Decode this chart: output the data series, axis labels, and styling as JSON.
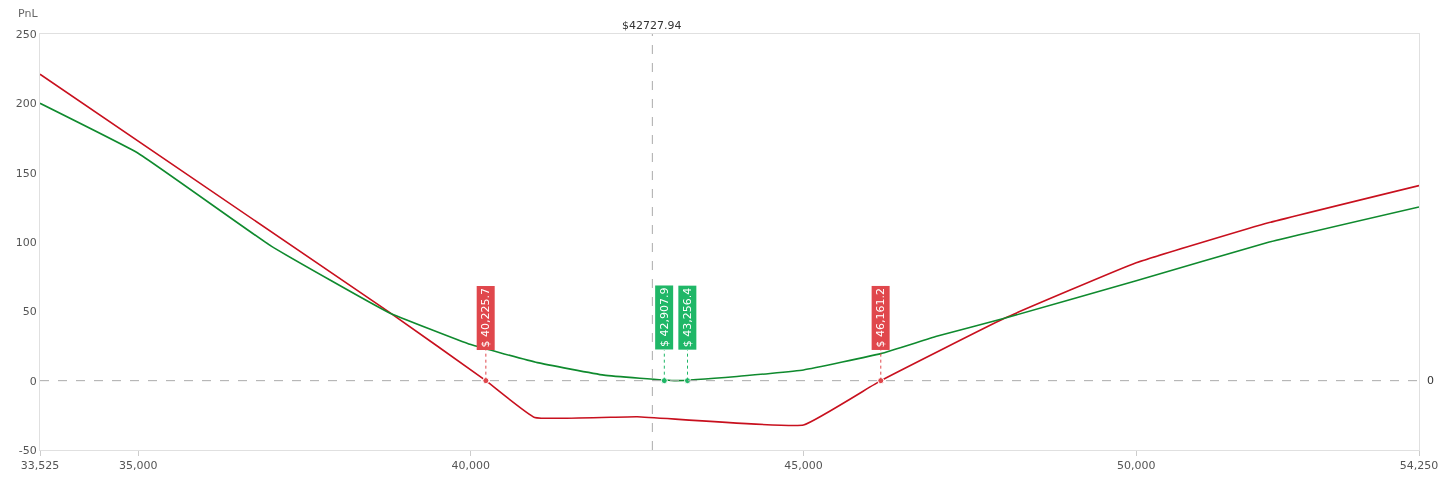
{
  "chart_data": {
    "type": "line",
    "ylabel": "PnL",
    "xlim": [
      33525,
      54250
    ],
    "ylim": [
      -50,
      250
    ],
    "xticks": [
      {
        "value": 33525,
        "label": "33,525"
      },
      {
        "value": 35000,
        "label": "35,000"
      },
      {
        "value": 40000,
        "label": "40,000"
      },
      {
        "value": 45000,
        "label": "45,000"
      },
      {
        "value": 50000,
        "label": "50,000"
      },
      {
        "value": 54250,
        "label": "54,250"
      }
    ],
    "yticks": [
      -50,
      0,
      50,
      100,
      150,
      200,
      250
    ],
    "marker": "none",
    "line_style": "solid",
    "series": [
      {
        "color": "#c8101e",
        "x": [
          33525,
          38756,
          40225.7,
          40960,
          42500,
          45000,
          46161.2,
          48020,
          50000,
          52000,
          54250
        ],
        "values": [
          221,
          50,
          0,
          -26.5,
          -26,
          -32,
          0,
          45,
          85,
          114,
          140.7
        ]
      },
      {
        "color": "#0f8a2e",
        "x": [
          33525,
          35000,
          37000,
          38756,
          40000,
          41000,
          42000,
          43080,
          44000,
          45000,
          46161.2,
          47000,
          48020,
          50000,
          52000,
          54250
        ],
        "values": [
          200,
          164,
          97,
          49.4,
          26,
          13,
          4,
          0,
          3,
          7.7,
          19.5,
          32,
          45,
          72,
          100,
          125.3
        ]
      },
      {
        "type": "scatter",
        "marker": "circle",
        "color": "#e0474c",
        "x": [
          40225.7,
          46161.2
        ],
        "values": [
          0,
          0
        ]
      },
      {
        "type": "scatter",
        "marker": "circle",
        "color": "#1fb767",
        "x": [
          42907.9,
          43256.4
        ],
        "values": [
          0,
          0
        ]
      }
    ],
    "annotations": [
      {
        "text": "$ 40,225.7",
        "x": 40225.7,
        "y": 0
      },
      {
        "text": "$ 42,907.9",
        "x": 42907.9,
        "y": 0
      },
      {
        "text": "$ 43,256.4",
        "x": 43256.4,
        "y": 0
      },
      {
        "text": "$ 46,161.2",
        "x": 46161.2,
        "y": 0
      }
    ],
    "ref_lines": [
      {
        "axis": "x",
        "value": 42727.94,
        "label": "$42727.94",
        "color": "#aaaaaa",
        "line_style": "dashed"
      },
      {
        "axis": "y",
        "value": 0,
        "label": "0",
        "color": "#aaaaaa",
        "line_style": "dashed"
      }
    ]
  }
}
